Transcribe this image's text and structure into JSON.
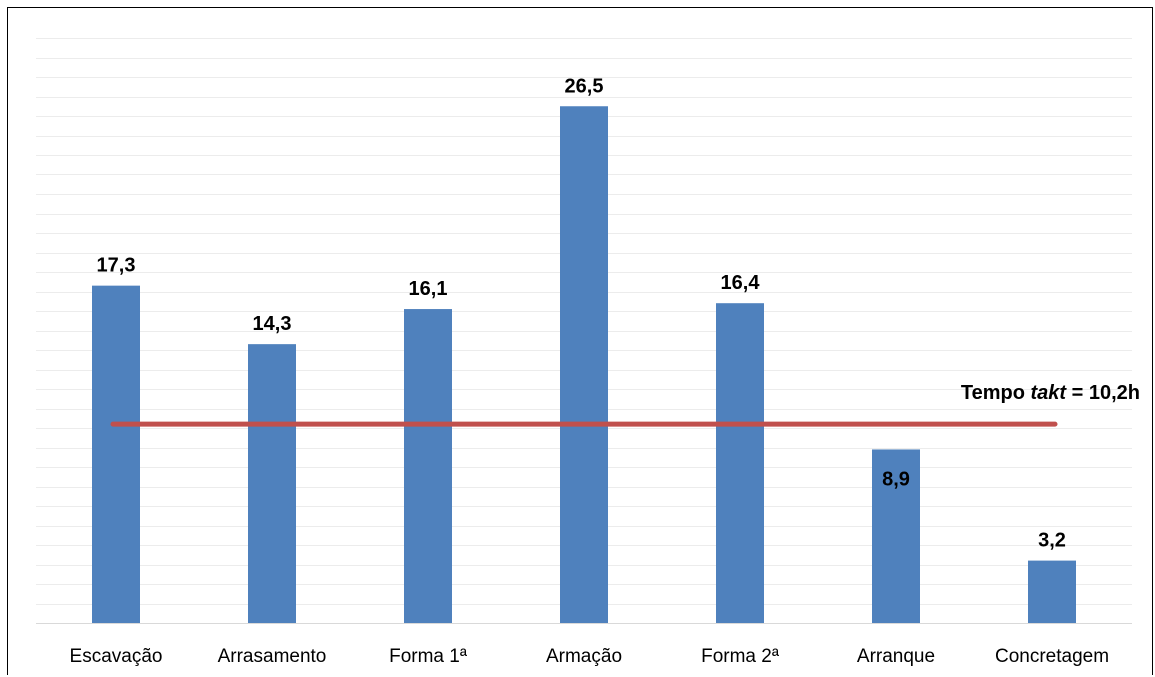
{
  "chart_data": {
    "type": "bar",
    "title": "",
    "xlabel": "",
    "ylabel": "",
    "categories": [
      "Escavação",
      "Arrasamento",
      "Forma 1ª",
      "Armação",
      "Forma 2ª",
      "Arranque",
      "Concretagem"
    ],
    "values": [
      17.3,
      14.3,
      16.1,
      26.5,
      16.4,
      8.9,
      3.2
    ],
    "value_labels": [
      "17,3",
      "14,3",
      "16,1",
      "26,5",
      "16,4",
      "8,9",
      "3,2"
    ],
    "ylim": [
      0,
      30
    ],
    "grid": true,
    "axis_labels_visible": false,
    "bar_color": "#4f81bd",
    "reference_line": {
      "value": 10.2,
      "label_prefix": "Tempo ",
      "label_emphasis": "takt",
      "label_suffix": " = 10,2h",
      "color": "#c0504d"
    }
  }
}
